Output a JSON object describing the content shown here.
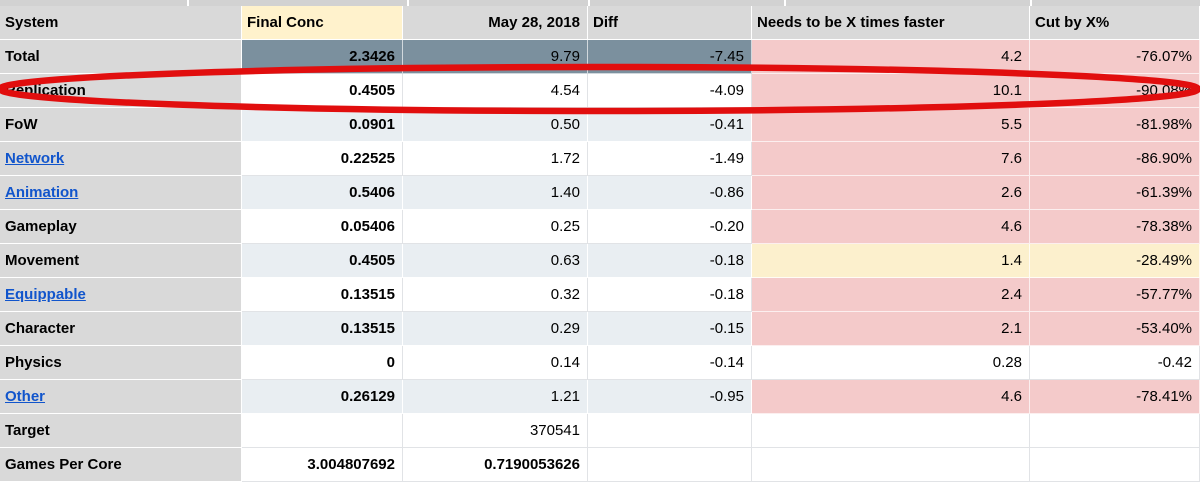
{
  "colors": {
    "header_gray": "#d9d9d9",
    "header_cream": "#fff2cc",
    "total_slate": "#7b909e",
    "band_light": "#e9eef2",
    "highlight_pink": "#f4caca",
    "highlight_yellow": "#fcf0cd",
    "link_blue": "#1155cc",
    "annotation_red": "#e10e0e"
  },
  "annotation": {
    "shape": "ellipse-icon",
    "meaning": "red circle drawn around the Replication row",
    "color": "#e10e0e"
  },
  "table": {
    "columns": [
      {
        "label": "System"
      },
      {
        "label": "Final Conc"
      },
      {
        "label": "May 28, 2018"
      },
      {
        "label": "Diff"
      },
      {
        "label": "Needs to be X times faster"
      },
      {
        "label": "Cut by X%"
      }
    ],
    "rows": [
      {
        "system": "Total",
        "is_link": false,
        "band": "slate",
        "highlight": "pink",
        "final_conc": "2.3426",
        "may28": "9.79",
        "may28_bold": false,
        "diff": "-7.45",
        "needs": "4.2",
        "cut": "-76.07%"
      },
      {
        "system": "Replication",
        "is_link": false,
        "band": "white",
        "highlight": "pink",
        "final_conc": "0.4505",
        "may28": "4.54",
        "may28_bold": false,
        "diff": "-4.09",
        "needs": "10.1",
        "cut": "-90.08%"
      },
      {
        "system": "FoW",
        "is_link": false,
        "band": "light",
        "highlight": "pink",
        "final_conc": "0.0901",
        "may28": "0.50",
        "may28_bold": false,
        "diff": "-0.41",
        "needs": "5.5",
        "cut": "-81.98%"
      },
      {
        "system": "Network",
        "is_link": true,
        "band": "white",
        "highlight": "pink",
        "final_conc": "0.22525",
        "may28": "1.72",
        "may28_bold": false,
        "diff": "-1.49",
        "needs": "7.6",
        "cut": "-86.90%"
      },
      {
        "system": "Animation",
        "is_link": true,
        "band": "light",
        "highlight": "pink",
        "final_conc": "0.5406",
        "may28": "1.40",
        "may28_bold": false,
        "diff": "-0.86",
        "needs": "2.6",
        "cut": "-61.39%"
      },
      {
        "system": "Gameplay",
        "is_link": false,
        "band": "white",
        "highlight": "pink",
        "final_conc": "0.05406",
        "may28": "0.25",
        "may28_bold": false,
        "diff": "-0.20",
        "needs": "4.6",
        "cut": "-78.38%"
      },
      {
        "system": "Movement",
        "is_link": false,
        "band": "light",
        "highlight": "yellow",
        "final_conc": "0.4505",
        "may28": "0.63",
        "may28_bold": false,
        "diff": "-0.18",
        "needs": "1.4",
        "cut": "-28.49%"
      },
      {
        "system": "Equippable",
        "is_link": true,
        "band": "white",
        "highlight": "pink",
        "final_conc": "0.13515",
        "may28": "0.32",
        "may28_bold": false,
        "diff": "-0.18",
        "needs": "2.4",
        "cut": "-57.77%"
      },
      {
        "system": "Character",
        "is_link": false,
        "band": "light",
        "highlight": "pink",
        "final_conc": "0.13515",
        "may28": "0.29",
        "may28_bold": false,
        "diff": "-0.15",
        "needs": "2.1",
        "cut": "-53.40%"
      },
      {
        "system": "Physics",
        "is_link": false,
        "band": "white",
        "highlight": "none",
        "final_conc": "0",
        "may28": "0.14",
        "may28_bold": false,
        "diff": "-0.14",
        "needs": "0.28",
        "cut": "-0.42"
      },
      {
        "system": "Other",
        "is_link": true,
        "band": "light",
        "highlight": "pink",
        "final_conc": "0.26129",
        "may28": "1.21",
        "may28_bold": false,
        "diff": "-0.95",
        "needs": "4.6",
        "cut": "-78.41%"
      },
      {
        "system": "Target",
        "is_link": false,
        "band": "white",
        "highlight": "none",
        "final_conc": "",
        "may28": "370541",
        "may28_bold": false,
        "diff": "",
        "needs": "",
        "cut": ""
      },
      {
        "system": "Games Per Core",
        "is_link": false,
        "band": "white",
        "highlight": "none",
        "final_conc": "3.004807692",
        "may28": "0.7190053626",
        "may28_bold": true,
        "diff": "",
        "needs": "",
        "cut": ""
      }
    ]
  }
}
